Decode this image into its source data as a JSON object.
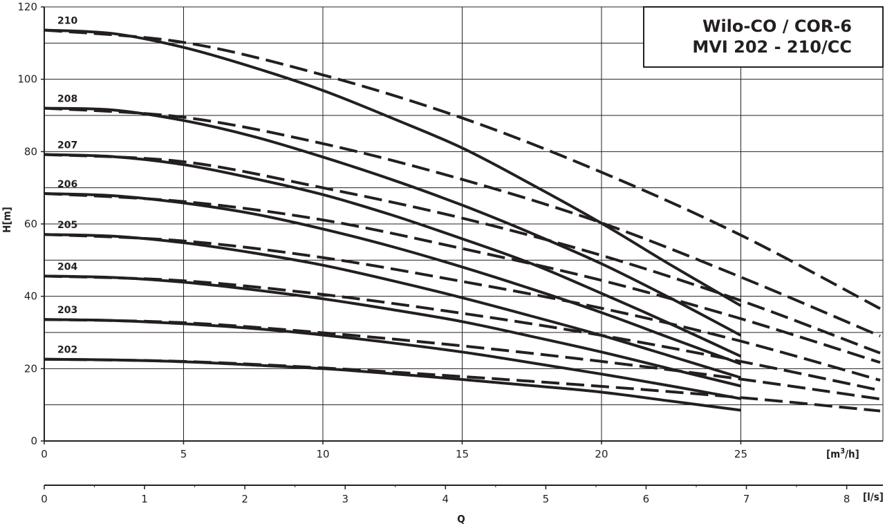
{
  "chart_data": {
    "type": "line",
    "title_lines": [
      "Wilo-CO / COR-6",
      "MVI 202 - 210/CC"
    ],
    "ylabel": "H[m]",
    "xlabel": "Q",
    "x_unit_primary": "[m³/h]",
    "x_unit_primary_base": "[m",
    "x_unit_primary_exp": "3",
    "x_unit_primary_tail": "/h]",
    "x_unit_secondary": "[l/s]",
    "ylim": [
      0,
      120
    ],
    "xlim_m3h": [
      0,
      30.1
    ],
    "y_ticks": [
      "0",
      "20",
      "40",
      "60",
      "80",
      "100",
      "120"
    ],
    "x_ticks_m3h": [
      "0",
      "5",
      "10",
      "15",
      "20",
      "25"
    ],
    "x_ticks_ls": [
      "0",
      "1",
      "2",
      "3",
      "4",
      "5",
      "6",
      "7",
      "8"
    ],
    "grid": true,
    "series": [
      {
        "name": "210",
        "solid": [
          [
            0,
            113.6
          ],
          [
            2.5,
            112.6
          ],
          [
            5,
            108.8
          ],
          [
            7.5,
            103.3
          ],
          [
            10,
            96.9
          ],
          [
            12.5,
            89.2
          ],
          [
            15,
            81
          ],
          [
            17.5,
            70.9
          ],
          [
            20,
            60.2
          ],
          [
            22.5,
            48.6
          ],
          [
            25,
            37.4
          ]
        ],
        "dashed": [
          [
            0,
            113.6
          ],
          [
            5,
            110.2
          ],
          [
            10,
            101.2
          ],
          [
            15,
            89.3
          ],
          [
            20,
            74.3
          ],
          [
            25,
            56.9
          ],
          [
            30,
            36.6
          ]
        ]
      },
      {
        "name": "208",
        "solid": [
          [
            0,
            92
          ],
          [
            2.5,
            91.5
          ],
          [
            5,
            88.6
          ],
          [
            7.5,
            84.2
          ],
          [
            10,
            78.5
          ],
          [
            12.5,
            72.2
          ],
          [
            15,
            65.2
          ],
          [
            17.5,
            57.4
          ],
          [
            20,
            49
          ],
          [
            22.5,
            39.4
          ],
          [
            25,
            29.2
          ]
        ],
        "dashed": [
          [
            0,
            92
          ],
          [
            5,
            89.5
          ],
          [
            10,
            82.2
          ],
          [
            15,
            72.3
          ],
          [
            20,
            60.3
          ],
          [
            25,
            45.3
          ],
          [
            30,
            29
          ]
        ]
      },
      {
        "name": "207",
        "solid": [
          [
            0,
            79.2
          ],
          [
            2.5,
            78.6
          ],
          [
            5,
            76.4
          ],
          [
            7.5,
            72.6
          ],
          [
            10,
            68.1
          ],
          [
            12.5,
            62.4
          ],
          [
            15,
            55.9
          ],
          [
            17.5,
            49
          ],
          [
            20,
            40.8
          ],
          [
            22.5,
            32.3
          ],
          [
            25,
            23.4
          ]
        ],
        "dashed": [
          [
            0,
            79.2
          ],
          [
            5,
            77.2
          ],
          [
            10,
            70
          ],
          [
            15,
            61.6
          ],
          [
            20,
            51.3
          ],
          [
            25,
            38.8
          ],
          [
            30,
            24.3
          ]
        ]
      },
      {
        "name": "206",
        "solid": [
          [
            0,
            68.4
          ],
          [
            2.5,
            67.8
          ],
          [
            5,
            65.8
          ],
          [
            7.5,
            62.8
          ],
          [
            10,
            58.6
          ],
          [
            12.5,
            53.7
          ],
          [
            15,
            48.1
          ],
          [
            17.5,
            42
          ],
          [
            20,
            35.5
          ],
          [
            22.5,
            28.4
          ],
          [
            25,
            21.3
          ]
        ],
        "dashed": [
          [
            0,
            68.4
          ],
          [
            5,
            66.2
          ],
          [
            10,
            61.1
          ],
          [
            15,
            53.2
          ],
          [
            20,
            44.4
          ],
          [
            25,
            33.8
          ],
          [
            30,
            21.7
          ]
        ]
      },
      {
        "name": "205",
        "solid": [
          [
            0,
            57.1
          ],
          [
            2.5,
            56.6
          ],
          [
            5,
            54.8
          ],
          [
            7.5,
            52
          ],
          [
            10,
            48.6
          ],
          [
            12.5,
            44.3
          ],
          [
            15,
            39.6
          ],
          [
            17.5,
            34.5
          ],
          [
            20,
            29.2
          ],
          [
            22.5,
            23.4
          ],
          [
            25,
            17.5
          ]
        ],
        "dashed": [
          [
            0,
            57.1
          ],
          [
            5,
            55.3
          ],
          [
            10,
            50.7
          ],
          [
            15,
            44.1
          ],
          [
            20,
            36.7
          ],
          [
            25,
            27.6
          ],
          [
            30,
            16.8
          ]
        ]
      },
      {
        "name": "204",
        "solid": [
          [
            0,
            45.6
          ],
          [
            2.5,
            45.2
          ],
          [
            5,
            43.9
          ],
          [
            7.5,
            41.8
          ],
          [
            10,
            39.3
          ],
          [
            12.5,
            36.3
          ],
          [
            15,
            33
          ],
          [
            17.5,
            28.9
          ],
          [
            20,
            24.6
          ],
          [
            22.5,
            19.9
          ],
          [
            25,
            15.2
          ]
        ],
        "dashed": [
          [
            0,
            45.6
          ],
          [
            5,
            44.3
          ],
          [
            10,
            40.5
          ],
          [
            15,
            35.3
          ],
          [
            20,
            29.2
          ],
          [
            25,
            22
          ],
          [
            30,
            14
          ]
        ]
      },
      {
        "name": "203",
        "solid": [
          [
            0,
            33.6
          ],
          [
            2.5,
            33.3
          ],
          [
            5,
            32.4
          ],
          [
            7.5,
            31.1
          ],
          [
            10,
            29.3
          ],
          [
            12.5,
            27.1
          ],
          [
            15,
            24.6
          ],
          [
            17.5,
            21.6
          ],
          [
            20,
            18.5
          ],
          [
            22.5,
            15.2
          ],
          [
            25,
            11.7
          ]
        ],
        "dashed": [
          [
            0,
            33.6
          ],
          [
            5,
            32.7
          ],
          [
            10,
            29.9
          ],
          [
            15,
            26.3
          ],
          [
            20,
            22
          ],
          [
            25,
            17.1
          ],
          [
            30,
            11.6
          ]
        ]
      },
      {
        "name": "202",
        "solid": [
          [
            0,
            22.6
          ],
          [
            2.5,
            22.4
          ],
          [
            5,
            21.9
          ],
          [
            7.5,
            21
          ],
          [
            10,
            20
          ],
          [
            12.5,
            18.6
          ],
          [
            15,
            17
          ],
          [
            17.5,
            15.3
          ],
          [
            20,
            13.5
          ],
          [
            22.5,
            11
          ],
          [
            25,
            8.5
          ]
        ],
        "dashed": [
          [
            0,
            22.6
          ],
          [
            5,
            22
          ],
          [
            10,
            20.2
          ],
          [
            15,
            17.8
          ],
          [
            20,
            15.1
          ],
          [
            25,
            12
          ],
          [
            30,
            8.3
          ]
        ]
      }
    ]
  }
}
